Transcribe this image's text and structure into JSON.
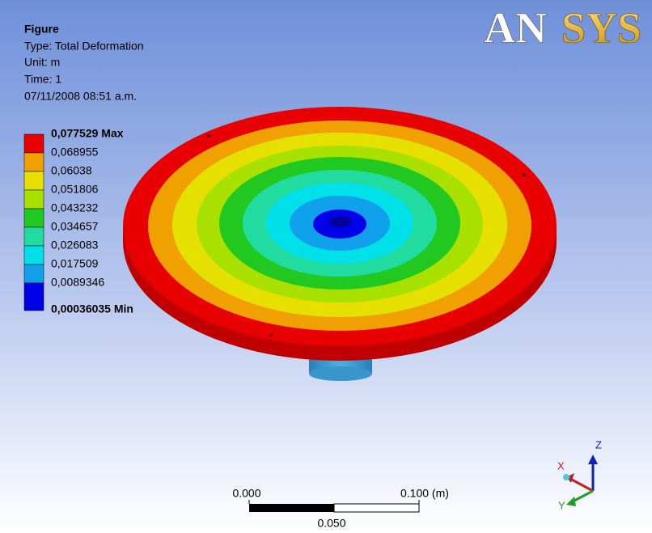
{
  "header": {
    "title": "Figure",
    "type": "Type: Total Deformation",
    "unit": "Unit: m",
    "time": "Time: 1",
    "date": "07/11/2008 08:51 a.m."
  },
  "logo": [
    "AN",
    "SYS"
  ],
  "legend": {
    "labels": [
      "0,077529 Max",
      "0,068955",
      "0,06038",
      "0,051806",
      "0,043232",
      "0,034657",
      "0,026083",
      "0,017509",
      "0,0089346",
      "0,00036035 Min"
    ]
  },
  "scale_bar": {
    "start": "0.000",
    "end": "0.100 (m)",
    "mid": "0.050"
  },
  "axes": {
    "x": "X",
    "y": "Y",
    "z": "Z"
  }
}
